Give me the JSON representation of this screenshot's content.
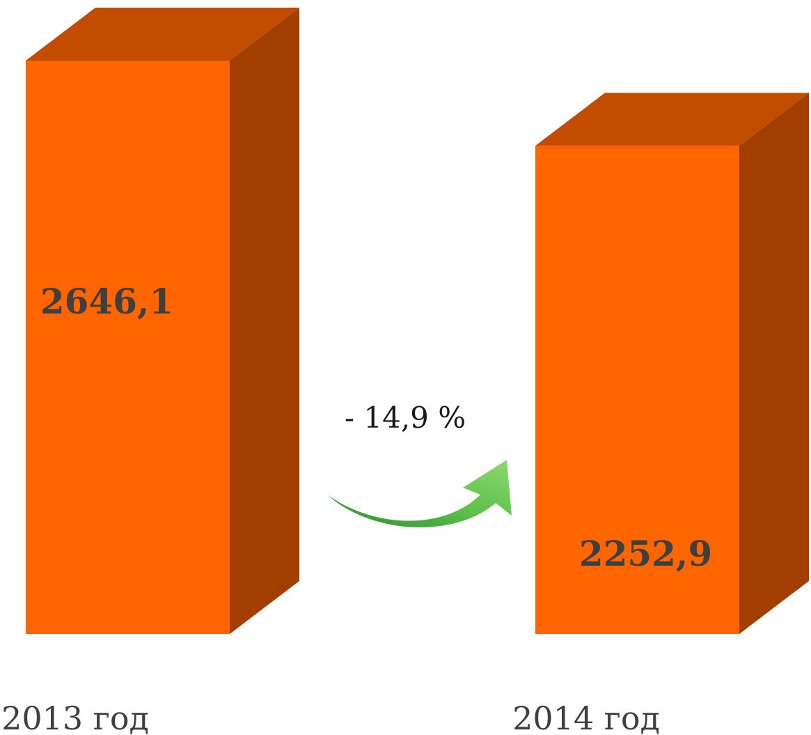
{
  "chart_data": {
    "type": "bar",
    "categories": [
      "2013 год",
      "2014 год"
    ],
    "values": [
      2646.1,
      2252.9
    ],
    "value_labels": [
      "2646,1",
      "2252,9"
    ],
    "change_label": "- 14,9 %",
    "title": "",
    "xlabel": "",
    "ylabel": "",
    "grid": false,
    "legend": "none"
  },
  "colors": {
    "bar_front": "#ff6600",
    "bar_top": "#c24d00",
    "bar_side": "#a23f00",
    "arrow": "#4caf3c",
    "text": "#3f3f3f"
  },
  "icons": {
    "change_arrow": "curved-arrow-up-right-icon"
  }
}
